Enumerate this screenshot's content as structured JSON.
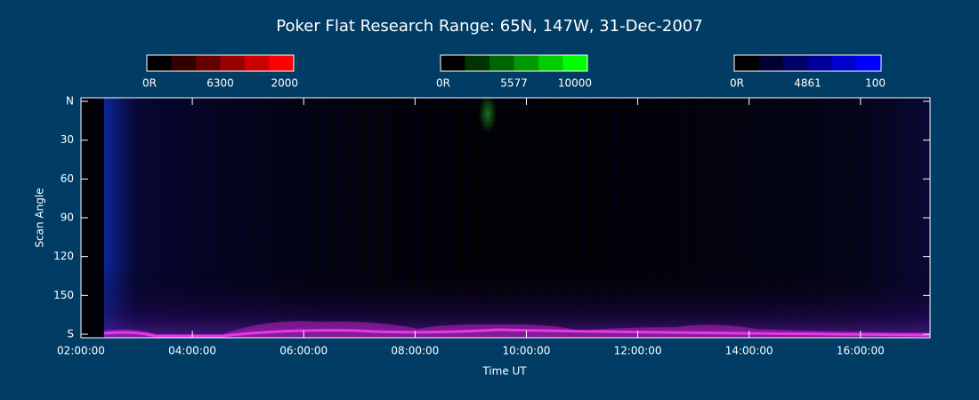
{
  "chart_data": {
    "type": "keogram",
    "title": "Poker Flat Research Range: 65N, 147W, 31-Dec-2007",
    "xlabel": "Time UT",
    "ylabel": "Scan Angle",
    "xlim": [
      2,
      17.25
    ],
    "xticks": [
      {
        "value": 2,
        "label": "02:00:00"
      },
      {
        "value": 4,
        "label": "04:00:00"
      },
      {
        "value": 6,
        "label": "06:00:00"
      },
      {
        "value": 8,
        "label": "08:00:00"
      },
      {
        "value": 10,
        "label": "10:00:00"
      },
      {
        "value": 12,
        "label": "12:00:00"
      },
      {
        "value": 14,
        "label": "14:00:00"
      },
      {
        "value": 16,
        "label": "16:00:00"
      }
    ],
    "ylim": [
      0,
      180
    ],
    "yticks": [
      {
        "value": 0,
        "label": "N"
      },
      30,
      60,
      90,
      120,
      150,
      {
        "value": 180,
        "label": "S"
      }
    ],
    "colorbars": [
      {
        "labels": [
          "0R",
          "6300",
          "2000"
        ],
        "color": "#ff0000"
      },
      {
        "labels": [
          "0R",
          "5577",
          "10000"
        ],
        "color": "#00ff00"
      },
      {
        "labels": [
          "0R",
          "4861",
          "100"
        ],
        "color": "#0000ff"
      }
    ]
  }
}
